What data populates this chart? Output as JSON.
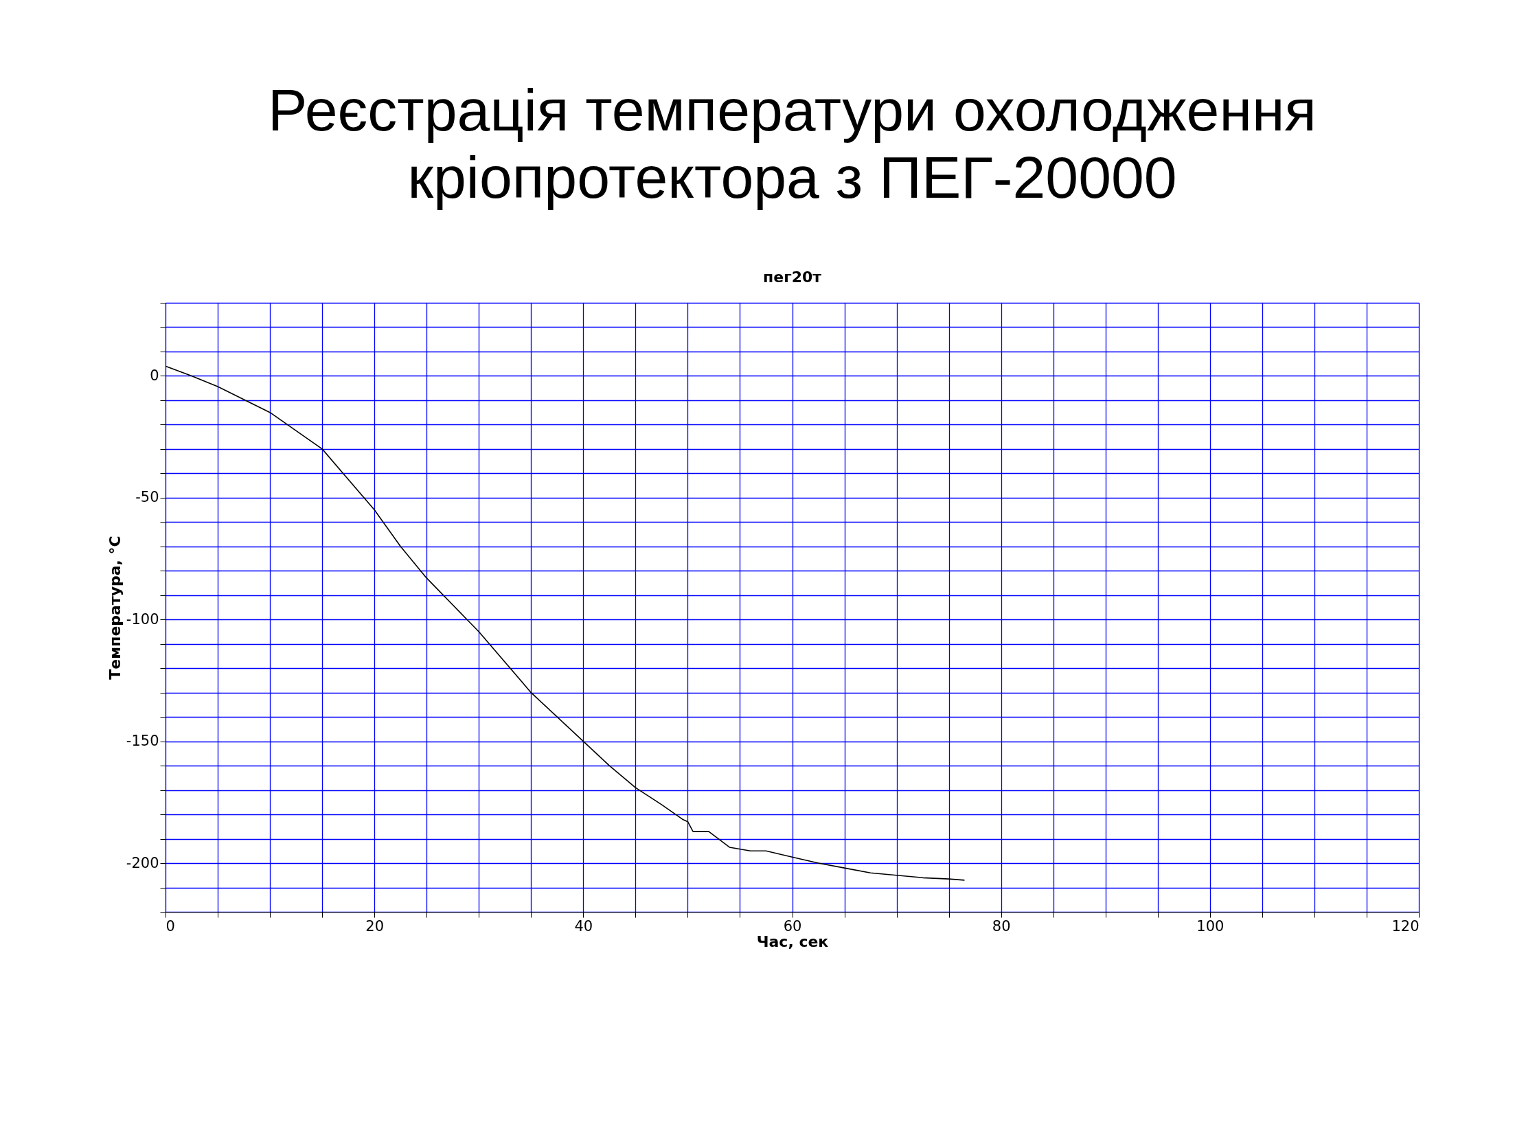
{
  "chart_data": {
    "type": "line",
    "title": "Реєстрація температури охолодження кріопротектора з ПЕГ-20000",
    "subtitle": "пег20т",
    "xlabel": "Час, сек",
    "ylabel": "Температура, °C",
    "x": [
      0,
      2.5,
      5,
      10,
      15,
      17.5,
      20,
      22.5,
      25,
      30,
      35,
      40,
      42.5,
      45,
      47.5,
      49.5,
      50,
      50.5,
      52,
      54,
      56,
      57.5,
      60,
      62.5,
      65,
      67.5,
      70,
      72.5,
      75,
      76.5
    ],
    "series": [
      {
        "color": "#000000",
        "values": [
          4,
          0,
          -4.4,
          -15,
          -30,
          -42.5,
          -55,
          -70,
          -83,
          -105,
          -130,
          -150,
          -160,
          -169,
          -176,
          -182,
          -183,
          -187,
          -187,
          -193.5,
          -195,
          -195,
          -197.5,
          -200,
          -202,
          -204,
          -205,
          -206,
          -206.5,
          -207
        ]
      }
    ],
    "xlim": [
      0,
      120
    ],
    "xticks": [
      0,
      {
        "value": 5,
        "label": null
      },
      {
        "value": 10,
        "label": null
      },
      {
        "value": 15,
        "label": null
      },
      20,
      {
        "value": 25,
        "label": null
      },
      {
        "value": 30,
        "label": null
      },
      {
        "value": 35,
        "label": null
      },
      40,
      {
        "value": 45,
        "label": null
      },
      {
        "value": 50,
        "label": null
      },
      {
        "value": 55,
        "label": null
      },
      60,
      {
        "value": 65,
        "label": null
      },
      {
        "value": 70,
        "label": null
      },
      {
        "value": 75,
        "label": null
      },
      80,
      {
        "value": 85,
        "label": null
      },
      {
        "value": 90,
        "label": null
      },
      {
        "value": 95,
        "label": null
      },
      100,
      {
        "value": 105,
        "label": null
      },
      {
        "value": 110,
        "label": null
      },
      {
        "value": 115,
        "label": null
      },
      120
    ],
    "ylim": [
      -220,
      30
    ],
    "yticks": [
      {
        "value": -220,
        "label": null
      },
      {
        "value": -210,
        "label": null
      },
      -200,
      {
        "value": -190,
        "label": null
      },
      {
        "value": -180,
        "label": null
      },
      {
        "value": -170,
        "label": null
      },
      {
        "value": -160,
        "label": null
      },
      -150,
      {
        "value": -140,
        "label": null
      },
      {
        "value": -130,
        "label": null
      },
      {
        "value": -120,
        "label": null
      },
      {
        "value": -110,
        "label": null
      },
      -100,
      {
        "value": -90,
        "label": null
      },
      {
        "value": -80,
        "label": null
      },
      {
        "value": -70,
        "label": null
      },
      {
        "value": -60,
        "label": null
      },
      -50,
      {
        "value": -40,
        "label": null
      },
      {
        "value": -30,
        "label": null
      },
      {
        "value": -20,
        "label": null
      },
      {
        "value": -10,
        "label": null
      },
      0,
      {
        "value": 10,
        "label": null
      },
      {
        "value": 20,
        "label": null
      },
      {
        "value": 30,
        "label": null
      }
    ],
    "grid": true,
    "line_style": "solid",
    "marker": "none"
  }
}
